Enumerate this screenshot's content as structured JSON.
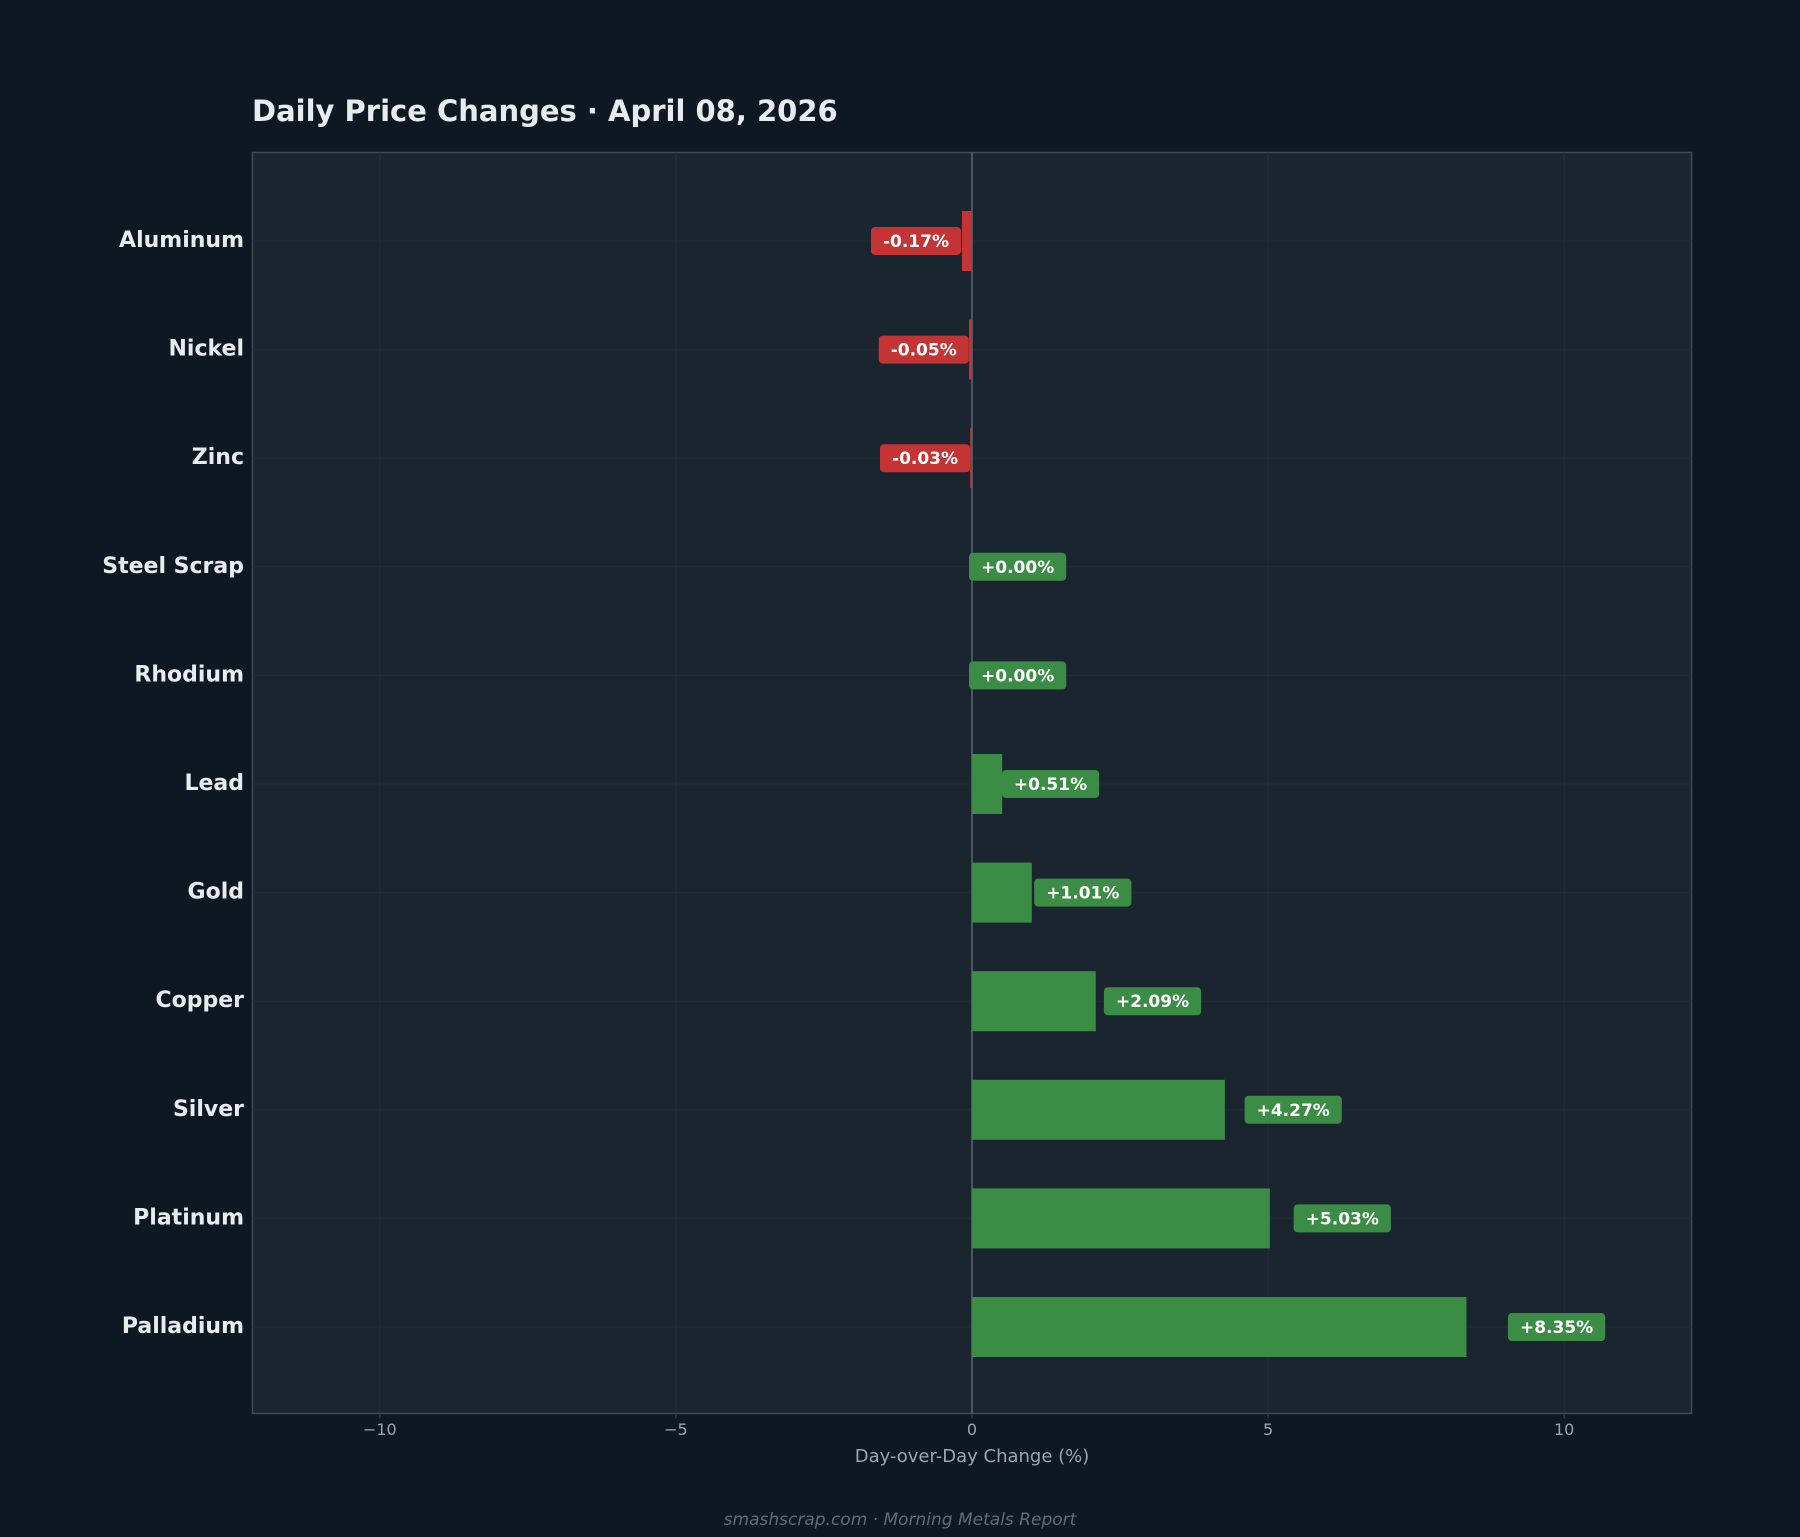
{
  "chart_data": {
    "type": "barh",
    "title": "Daily Price Changes  ·  April 08, 2026",
    "x_label": "Day-over-Day Change (%)",
    "footer": "smashscrap.com  ·  Morning Metals Report",
    "categories": [
      "Aluminum",
      "Nickel",
      "Zinc",
      "Steel Scrap",
      "Rhodium",
      "Lead",
      "Gold",
      "Copper",
      "Silver",
      "Platinum",
      "Palladium"
    ],
    "values": [
      -0.17,
      -0.05,
      -0.03,
      0.0,
      0.0,
      0.51,
      1.01,
      2.09,
      4.27,
      5.03,
      8.35
    ],
    "value_labels": [
      "-0.17%",
      "-0.05%",
      "-0.03%",
      "+0.00%",
      "+0.00%",
      "+0.51%",
      "+1.01%",
      "+2.09%",
      "+4.27%",
      "+5.03%",
      "+8.35%"
    ],
    "positive_color": "#3b8c45",
    "negative_color": "#c53434",
    "xlim": [
      -12.15,
      12.15
    ],
    "xticks": [
      {
        "value": -10,
        "label": "−10"
      },
      {
        "value": -5,
        "label": "−5"
      },
      0,
      5,
      10
    ],
    "grid": true
  }
}
